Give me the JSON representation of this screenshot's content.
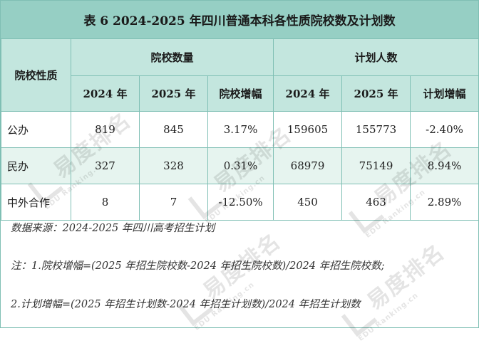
{
  "title": "表 6  2024-2025 年四川普通本科各性质院校数及计划数",
  "header": {
    "row_label": "院校性质",
    "group1": "院校数量",
    "group2": "计划人数",
    "cols": [
      "2024 年",
      "2025 年",
      "院校增幅",
      "2024 年",
      "2025 年",
      "计划增幅"
    ]
  },
  "rows": [
    {
      "label": "公办",
      "cells": [
        "819",
        "845",
        "3.17%",
        "159605",
        "155773",
        "-2.40%"
      ]
    },
    {
      "label": "民办",
      "cells": [
        "327",
        "328",
        "0.31%",
        "68979",
        "75149",
        "8.94%"
      ]
    },
    {
      "label": "中外合作",
      "cells": [
        "8",
        "7",
        "-12.50%",
        "450",
        "463",
        "2.89%"
      ]
    }
  ],
  "notes": {
    "source": "数据来源：2024-2025 年四川高考招生计划",
    "note1": "注：1.院校增幅=(2025 年招生院校数-2024 年招生院校数)/2024 年招生院校数;",
    "note2": "2.计划增幅=(2025 年招生计划数-2024 年招生计划数)/2024 年招生计划数"
  },
  "watermark": {
    "logo_text": "易度排名",
    "sub_text": "EDU Ranking.cn"
  }
}
